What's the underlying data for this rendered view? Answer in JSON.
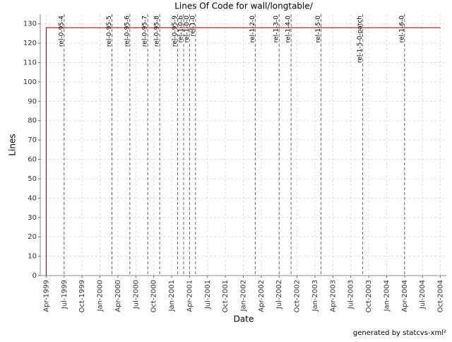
{
  "chart_data": {
    "type": "line",
    "title": "Lines Of Code for wall/longtable/",
    "x_label": "Date",
    "y_label": "Lines",
    "footer": "generated by statcvs-xml²",
    "x": [
      "1999-04",
      "1999-04",
      "2004-10"
    ],
    "series": [
      {
        "name": "Lines",
        "color": "#cc0000",
        "values": [
          0,
          128,
          128
        ]
      }
    ],
    "xlim": [
      "1999-03",
      "2004-11"
    ],
    "xticks": [
      {
        "value": "1999-04",
        "label": "Apr-1999"
      },
      {
        "value": "1999-07",
        "label": "Jul-1999"
      },
      {
        "value": "1999-10",
        "label": "Oct-1999"
      },
      {
        "value": "2000-01",
        "label": "Jan-2000"
      },
      {
        "value": "2000-04",
        "label": "Apr-2000"
      },
      {
        "value": "2000-07",
        "label": "Jul-2000"
      },
      {
        "value": "2000-10",
        "label": "Oct-2000"
      },
      {
        "value": "2001-01",
        "label": "Jan-2001"
      },
      {
        "value": "2001-04",
        "label": "Apr-2001"
      },
      {
        "value": "2001-07",
        "label": "Jul-2001"
      },
      {
        "value": "2001-10",
        "label": "Oct-2001"
      },
      {
        "value": "2002-01",
        "label": "Jan-2002"
      },
      {
        "value": "2002-04",
        "label": "Apr-2002"
      },
      {
        "value": "2002-07",
        "label": "Jul-2002"
      },
      {
        "value": "2002-10",
        "label": "Oct-2002"
      },
      {
        "value": "2003-01",
        "label": "Jan-2003"
      },
      {
        "value": "2003-04",
        "label": "Apr-2003"
      },
      {
        "value": "2003-07",
        "label": "Jul-2003"
      },
      {
        "value": "2003-10",
        "label": "Oct-2003"
      },
      {
        "value": "2004-01",
        "label": "Jan-2004"
      },
      {
        "value": "2004-04",
        "label": "Apr-2004"
      },
      {
        "value": "2004-07",
        "label": "Jul-2004"
      },
      {
        "value": "2004-10",
        "label": "Oct-2004"
      }
    ],
    "ylim": [
      0,
      135
    ],
    "yticks": [
      0,
      10,
      20,
      30,
      40,
      50,
      60,
      70,
      80,
      90,
      100,
      110,
      120,
      130
    ],
    "grid": true,
    "markers": [
      {
        "label": "rel-0-95-4",
        "x": "1999-07"
      },
      {
        "label": "rel-0-95-5",
        "x": "2000-03"
      },
      {
        "label": "rel-0-95-6",
        "x": "2000-06"
      },
      {
        "label": "rel-0-95-7",
        "x": "2000-09"
      },
      {
        "label": "rel-0-95-8",
        "x": "2000-11"
      },
      {
        "label": "rel-0-95-9",
        "x": "2001-02"
      },
      {
        "label": "rel-1-0-b",
        "x": "2001-03"
      },
      {
        "label": "rel-1-0-0",
        "x": "2001-04"
      },
      {
        "label": "rel-1-0",
        "x": "2001-05"
      },
      {
        "label": "rel-1-2-0",
        "x": "2002-03"
      },
      {
        "label": "rel-1-3-0",
        "x": "2002-07"
      },
      {
        "label": "rel-1-4-0",
        "x": "2002-09"
      },
      {
        "label": "rel-1-5-0",
        "x": "2003-02"
      },
      {
        "label": "rel-1-5-0-patch",
        "x": "2003-09"
      },
      {
        "label": "rel-1-6-0",
        "x": "2004-04"
      }
    ]
  }
}
